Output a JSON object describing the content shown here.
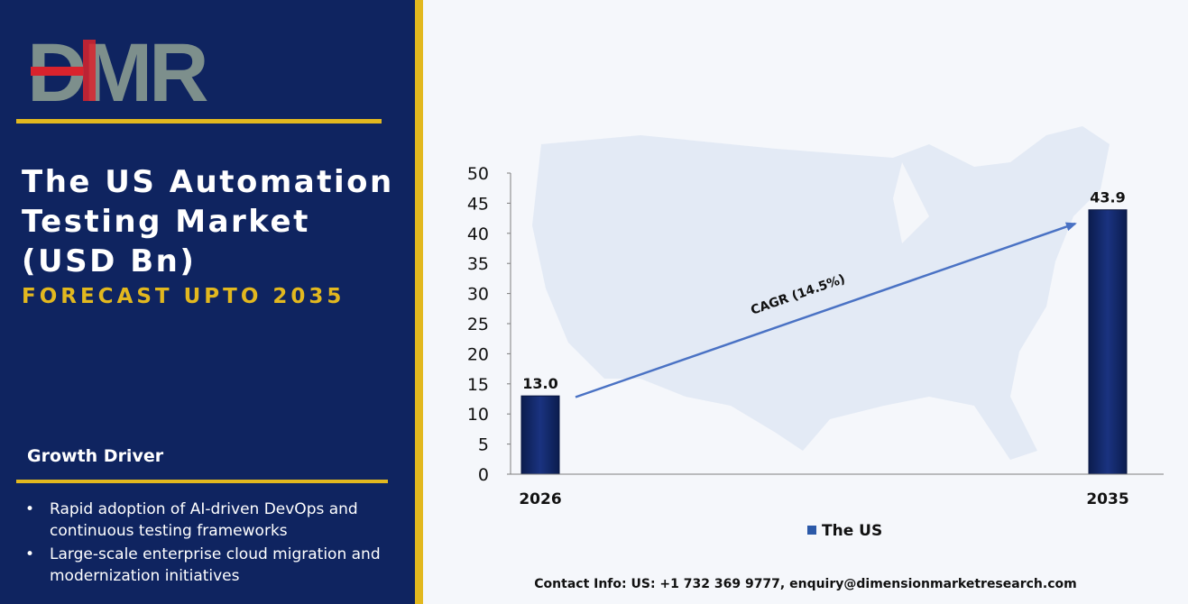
{
  "brand": {
    "logo_text": "DMR"
  },
  "header": {
    "title": "The US Automation Testing Market (USD Bn)",
    "subtitle": "FORECAST UPTO 2035"
  },
  "growth_driver": {
    "heading": "Growth Driver",
    "items": [
      "Rapid adoption of AI-driven DevOps and continuous testing frameworks",
      "Large-scale enterprise cloud migration and modernization initiatives"
    ]
  },
  "chart_data": {
    "type": "bar",
    "categories": [
      "2026",
      "2035"
    ],
    "series": [
      {
        "name": "The US",
        "values": [
          13.0,
          43.9
        ],
        "color": "#0f2460"
      }
    ],
    "data_labels": [
      "13.0",
      "43.9"
    ],
    "ylim": [
      0,
      50
    ],
    "yticks": [
      0,
      5,
      10,
      15,
      20,
      25,
      30,
      35,
      40,
      45,
      50
    ],
    "annotation": "CAGR (14.5%)",
    "legend": "bottom-center",
    "grid": false
  },
  "footer": {
    "contact": "Contact Info: US: +1 732 369 9777, enquiry@dimensionmarketresearch.com"
  },
  "colors": {
    "navy": "#0f2460",
    "gold": "#e2b81f",
    "arrow": "#4a72c4",
    "logo_grey": "#7d8f8c",
    "logo_red": "#d9232d"
  }
}
